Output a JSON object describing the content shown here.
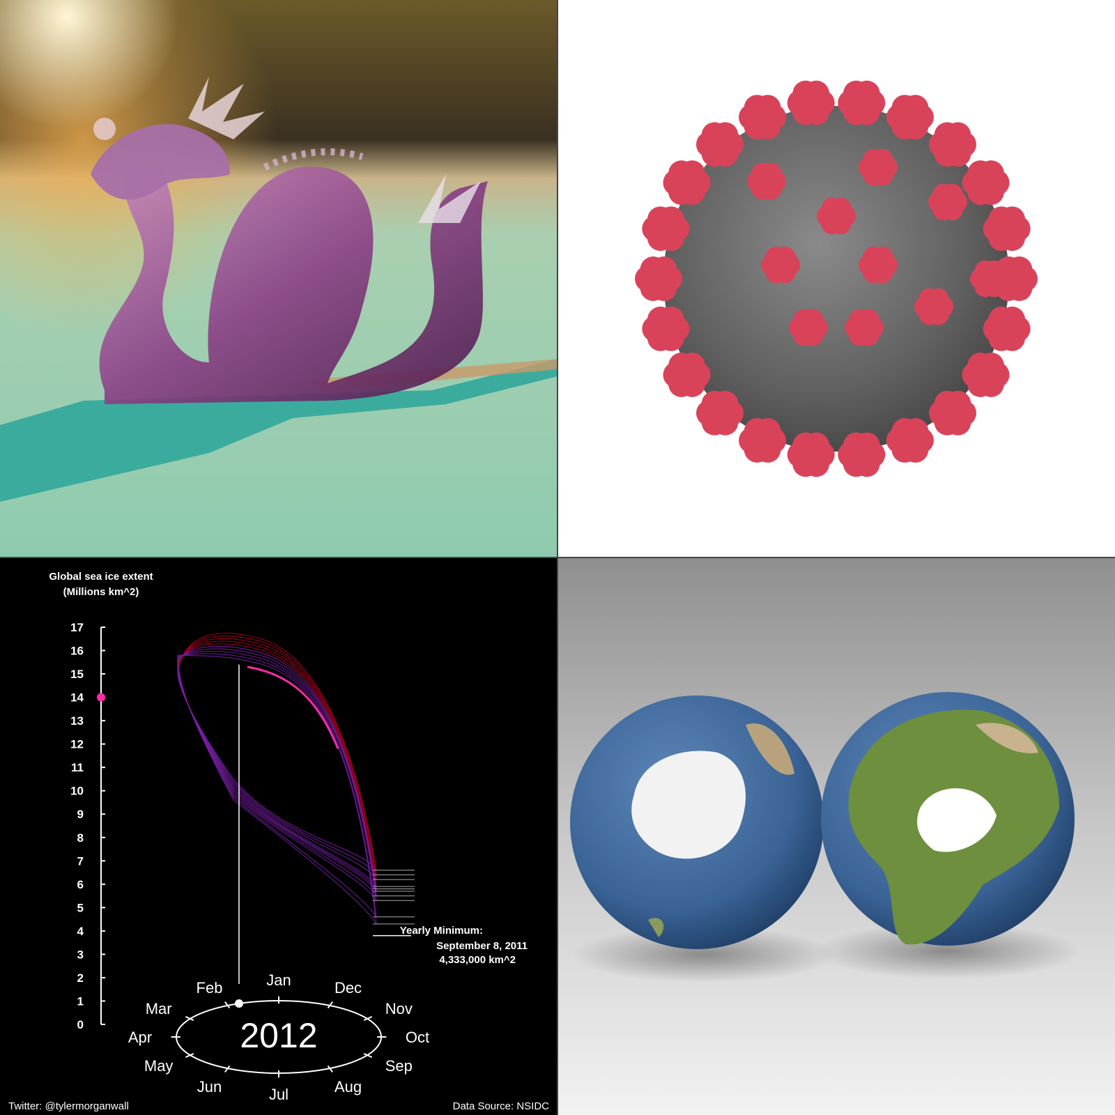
{
  "chart_data": {
    "type": "line",
    "title": "Global sea ice extent",
    "subtitle": "(Millions km^2)",
    "ylim": [
      0,
      17
    ],
    "yticks": [
      "0",
      "1",
      "2",
      "3",
      "4",
      "5",
      "6",
      "7",
      "8",
      "9",
      "10",
      "11",
      "12",
      "13",
      "14",
      "15",
      "16",
      "17"
    ],
    "current_value": 14,
    "months": [
      "Jan",
      "Feb",
      "Mar",
      "Apr",
      "May",
      "Jun",
      "Jul",
      "Aug",
      "Sep",
      "Oct",
      "Nov",
      "Dec"
    ],
    "year": "2012",
    "annotation": {
      "line1": "Yearly Minimum:",
      "line2": "September 8, 2011",
      "line3": "4,333,000 km^2"
    },
    "yearly_minima": [
      6.6,
      6.4,
      6.2,
      5.9,
      5.8,
      5.7,
      5.5,
      5.3,
      4.6,
      4.3
    ],
    "seasonal_cycle": {
      "max_month": "Feb",
      "max_value": 16.8,
      "min_month": "Sep",
      "min_value": 4.3
    },
    "colors": {
      "early": "#b00020",
      "late": "#7a1fa8",
      "current": "#ff2aa8"
    }
  },
  "footer": {
    "twitter": "Twitter: @tylermorganwall",
    "source": "Data Source: NSIDC"
  }
}
